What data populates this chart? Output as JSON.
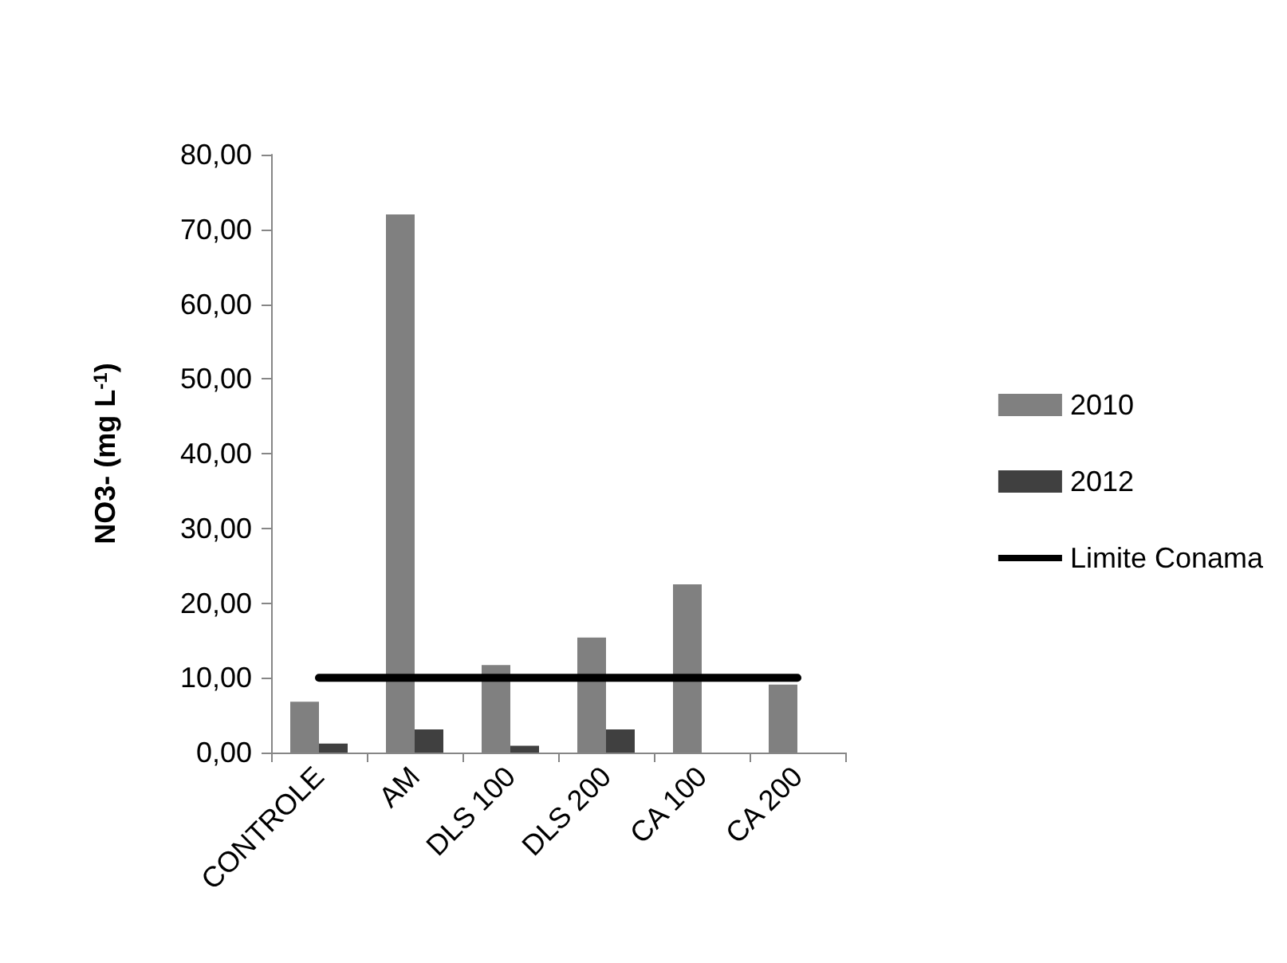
{
  "chart_data": {
    "type": "bar",
    "ylabel": "NO3- (mg L$^{-1}$)",
    "categories": [
      "CONTROLE",
      "AM",
      "DLS 100",
      "DLS 200",
      "CA 100",
      "CA 200"
    ],
    "series": [
      {
        "name": "2010",
        "color": "#808080",
        "values": [
          6.8,
          72.0,
          11.7,
          15.4,
          22.5,
          9.1
        ]
      },
      {
        "name": "2012",
        "color": "#404040",
        "values": [
          1.2,
          3.1,
          0.9,
          3.1,
          null,
          null
        ]
      },
      {
        "name": "Limite Conama",
        "type": "line",
        "color": "#000000",
        "values": [
          10,
          10,
          10,
          10,
          10,
          10
        ]
      }
    ],
    "ylim": [
      0,
      80
    ],
    "yticks": [
      {
        "value": 0,
        "label": "0,00"
      },
      {
        "value": 10,
        "label": "10,00"
      },
      {
        "value": 20,
        "label": "20,00"
      },
      {
        "value": 30,
        "label": "30,00"
      },
      {
        "value": 40,
        "label": "40,00"
      },
      {
        "value": 50,
        "label": "50,00"
      },
      {
        "value": 60,
        "label": "60,00"
      },
      {
        "value": 70,
        "label": "70,00"
      },
      {
        "value": 80,
        "label": "80,00"
      }
    ],
    "grid": false,
    "legend": "right",
    "marker": "none",
    "line_style": "solid"
  }
}
